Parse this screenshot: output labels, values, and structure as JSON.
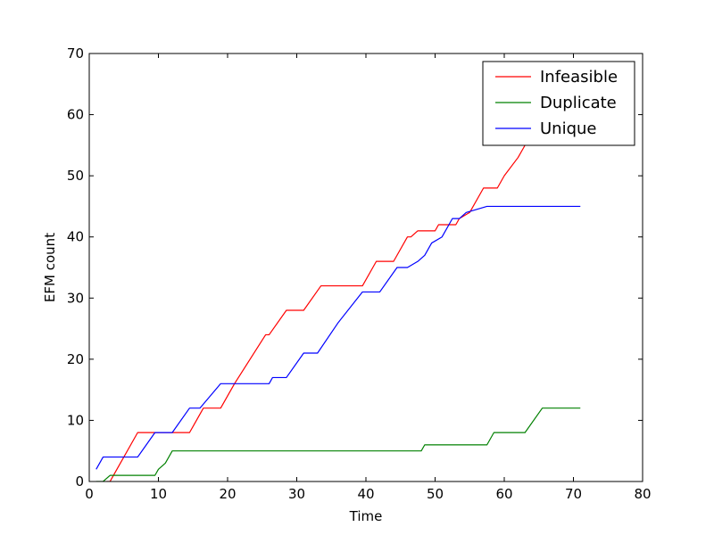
{
  "chart_data": {
    "type": "line",
    "title": "",
    "xlabel": "Time",
    "ylabel": "EFM count",
    "xlim": [
      0,
      80
    ],
    "ylim": [
      0,
      70
    ],
    "xticks": [
      0,
      10,
      20,
      30,
      40,
      50,
      60,
      70,
      80
    ],
    "yticks": [
      0,
      10,
      20,
      30,
      40,
      50,
      60,
      70
    ],
    "grid": false,
    "legend_position": "top-right",
    "series": [
      {
        "name": "Infeasible",
        "color": "#ff0000",
        "x": [
          2.5,
          3,
          5,
          7,
          10,
          12,
          14.5,
          15,
          16.5,
          19,
          21,
          25.5,
          26,
          28.5,
          29,
          31,
          33.5,
          39.5,
          41.5,
          44,
          46,
          46.5,
          47.5,
          50,
          50.5,
          53,
          53.5,
          55,
          57,
          59,
          60,
          62,
          63,
          64,
          65,
          66
        ],
        "y": [
          0,
          0,
          4,
          8,
          8,
          8,
          8,
          9,
          12,
          12,
          16,
          24,
          24,
          28,
          28,
          28,
          32,
          32,
          36,
          36,
          40,
          40,
          41,
          41,
          42,
          42,
          43,
          44,
          48,
          48,
          50,
          53,
          55,
          57,
          59,
          60
        ]
      },
      {
        "name": "Duplicate",
        "color": "#008000",
        "x": [
          1,
          2,
          3,
          9.5,
          10,
          11,
          12,
          30,
          48,
          48.5,
          57.5,
          58.5,
          63,
          65.5,
          71
        ],
        "y": [
          0,
          0,
          1,
          1,
          2,
          3,
          5,
          5,
          5,
          6,
          6,
          8,
          8,
          12,
          12
        ],
        "dashed_segment_to": null
      },
      {
        "name": "Unique",
        "color": "#0000ff",
        "x": [
          1,
          2,
          7,
          9.5,
          12,
          14.5,
          16,
          19,
          26,
          26.5,
          28.5,
          31,
          33,
          36,
          39.5,
          42,
          44.5,
          46,
          47.5,
          48.5,
          49.5,
          51,
          52.5,
          53.5,
          54.5,
          57.5,
          64,
          71
        ],
        "y": [
          2,
          4,
          4,
          8,
          8,
          12,
          12,
          16,
          16,
          17,
          17,
          21,
          21,
          26,
          31,
          31,
          35,
          35,
          36,
          37,
          39,
          40,
          43,
          43,
          44,
          45,
          45,
          45
        ]
      }
    ]
  }
}
